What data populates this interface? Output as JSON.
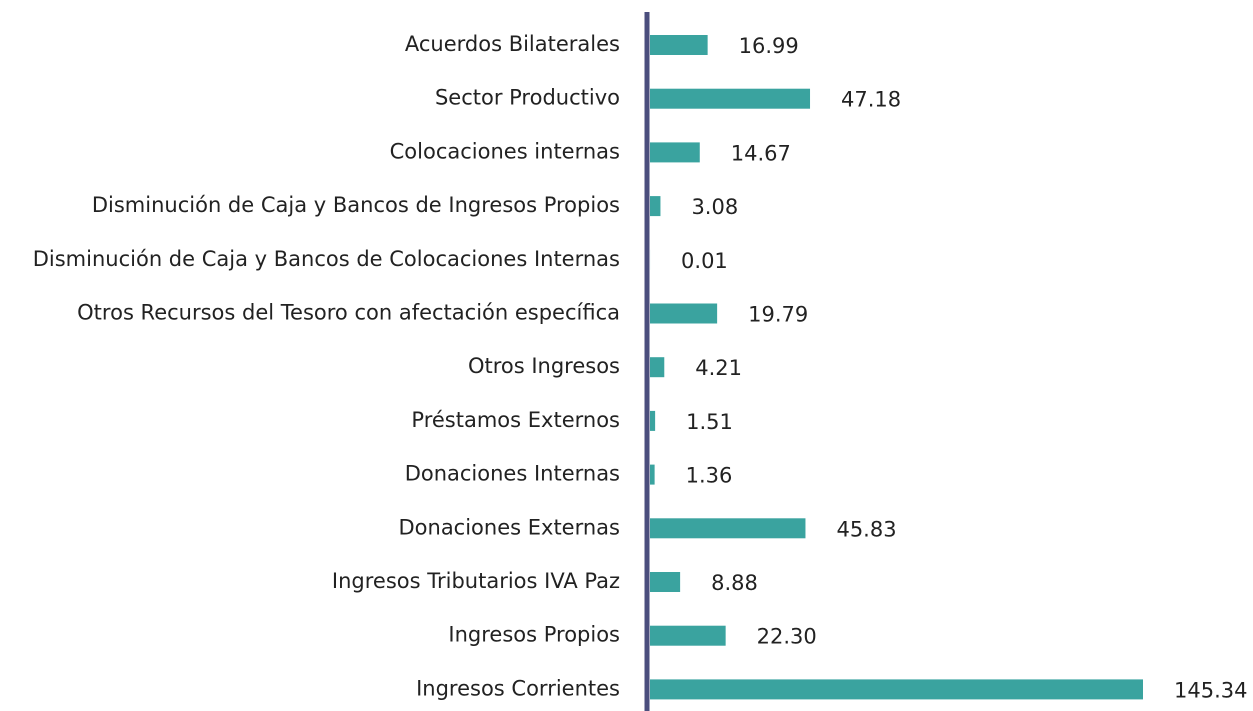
{
  "chart_data": {
    "type": "bar",
    "orientation": "horizontal",
    "color": "#3aa39f",
    "axis_color": "#4b4e7d",
    "categories": [
      "Acuerdos Bilaterales",
      "Sector Productivo",
      "Colocaciones internas",
      "Disminución de Caja y Bancos de Ingresos Propios",
      "Disminución de Caja y Bancos de Colocaciones Internas",
      "Otros Recursos del Tesoro con afectación específica",
      "Otros Ingresos",
      "Préstamos Externos",
      "Donaciones Internas",
      "Donaciones Externas",
      "Ingresos Tributarios IVA Paz",
      "Ingresos Propios",
      "Ingresos Corrientes"
    ],
    "values": [
      16.99,
      47.18,
      14.67,
      3.08,
      0.01,
      19.79,
      4.21,
      1.51,
      1.36,
      45.83,
      8.88,
      22.3,
      145.34
    ],
    "value_labels": [
      "16.99",
      "47.18",
      "14.67",
      "3.08",
      "0.01",
      "19.79",
      "4.21",
      "1.51",
      "1.36",
      "45.83",
      "8.88",
      "22.30",
      "145.34"
    ]
  }
}
